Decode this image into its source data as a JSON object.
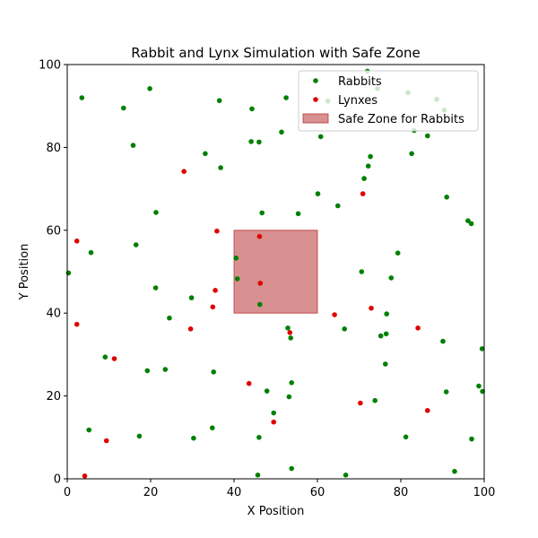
{
  "chart_data": {
    "type": "scatter",
    "title": "Rabbit and Lynx Simulation with Safe Zone",
    "xlabel": "X Position",
    "ylabel": "Y Position",
    "xlim": [
      0,
      100
    ],
    "ylim": [
      0,
      100
    ],
    "xticks": [
      0,
      20,
      40,
      60,
      80,
      100
    ],
    "yticks": [
      0,
      20,
      40,
      60,
      80,
      100
    ],
    "grid": false,
    "legend_position": "top-right",
    "safe_zone": {
      "name": "Safe Zone for Rabbits",
      "x": [
        40,
        60
      ],
      "y": [
        40,
        60
      ],
      "color": "#b22222"
    },
    "series": [
      {
        "name": "Rabbits",
        "color": "#008000",
        "points": [
          [
            0.3,
            49.7
          ],
          [
            3.5,
            92
          ],
          [
            5.2,
            11.8
          ],
          [
            5.7,
            54.6
          ],
          [
            9.1,
            29.4
          ],
          [
            13.5,
            89.5
          ],
          [
            15.8,
            80.5
          ],
          [
            16.5,
            56.5
          ],
          [
            17.3,
            10.3
          ],
          [
            19.2,
            26.1
          ],
          [
            19.8,
            94.2
          ],
          [
            21.2,
            46.1
          ],
          [
            21.3,
            64.3
          ],
          [
            23.5,
            26.4
          ],
          [
            24.5,
            38.8
          ],
          [
            29.8,
            43.7
          ],
          [
            30.3,
            9.8
          ],
          [
            33.1,
            78.5
          ],
          [
            34.8,
            12.3
          ],
          [
            35.1,
            25.8
          ],
          [
            36.5,
            91.3
          ],
          [
            36.8,
            75.1
          ],
          [
            40.5,
            53.3
          ],
          [
            40.8,
            48.3
          ],
          [
            44.1,
            81.4
          ],
          [
            44.3,
            89.3
          ],
          [
            45.7,
            0.9
          ],
          [
            46.0,
            81.3
          ],
          [
            46.0,
            10.0
          ],
          [
            46.2,
            42.1
          ],
          [
            46.7,
            64.2
          ],
          [
            47.9,
            21.2
          ],
          [
            49.5,
            15.9
          ],
          [
            51.4,
            83.7
          ],
          [
            52.5,
            92.0
          ],
          [
            52.9,
            36.4
          ],
          [
            53.2,
            19.8
          ],
          [
            53.6,
            34.0
          ],
          [
            53.8,
            23.2
          ],
          [
            53.8,
            2.5
          ],
          [
            55.4,
            64.0
          ],
          [
            60.1,
            68.8
          ],
          [
            60.8,
            82.6
          ],
          [
            62.5,
            91.2
          ],
          [
            64.9,
            65.9
          ],
          [
            66.5,
            36.2
          ],
          [
            66.8,
            0.9
          ],
          [
            70.6,
            50.0
          ],
          [
            71.2,
            72.5
          ],
          [
            72.2,
            75.5
          ],
          [
            72.7,
            77.8
          ],
          [
            72.0,
            98.4
          ],
          [
            73.8,
            18.9
          ],
          [
            74.4,
            94.2
          ],
          [
            75.2,
            34.5
          ],
          [
            76.3,
            27.7
          ],
          [
            76.5,
            35.0
          ],
          [
            76.6,
            39.8
          ],
          [
            77.7,
            48.5
          ],
          [
            79.3,
            54.5
          ],
          [
            81.2,
            10.1
          ],
          [
            81.7,
            93.2
          ],
          [
            82.6,
            78.5
          ],
          [
            83.2,
            84.1
          ],
          [
            86.4,
            82.8
          ],
          [
            88.6,
            91.6
          ],
          [
            90.1,
            33.2
          ],
          [
            90.4,
            89.0
          ],
          [
            90.9,
            21.0
          ],
          [
            91.0,
            68.0
          ],
          [
            92.9,
            1.8
          ],
          [
            96.1,
            62.3
          ],
          [
            96.9,
            61.6
          ],
          [
            97.0,
            9.6
          ],
          [
            98.7,
            22.4
          ],
          [
            99.6,
            21.1
          ],
          [
            99.5,
            31.4
          ]
        ]
      },
      {
        "name": "Lynxes",
        "color": "#e00000",
        "points": [
          [
            2.3,
            57.4
          ],
          [
            2.3,
            37.3
          ],
          [
            4.2,
            0.7
          ],
          [
            9.4,
            9.2
          ],
          [
            11.3,
            29.0
          ],
          [
            28.0,
            74.2
          ],
          [
            29.6,
            36.2
          ],
          [
            34.9,
            41.5
          ],
          [
            35.5,
            45.5
          ],
          [
            35.9,
            59.8
          ],
          [
            43.6,
            23.0
          ],
          [
            46.1,
            58.5
          ],
          [
            46.3,
            47.2
          ],
          [
            49.5,
            13.7
          ],
          [
            53.4,
            35.3
          ],
          [
            64.1,
            39.6
          ],
          [
            70.3,
            18.3
          ],
          [
            70.9,
            68.8
          ],
          [
            72.9,
            41.2
          ],
          [
            84.1,
            36.4
          ],
          [
            86.4,
            16.5
          ]
        ]
      }
    ]
  }
}
